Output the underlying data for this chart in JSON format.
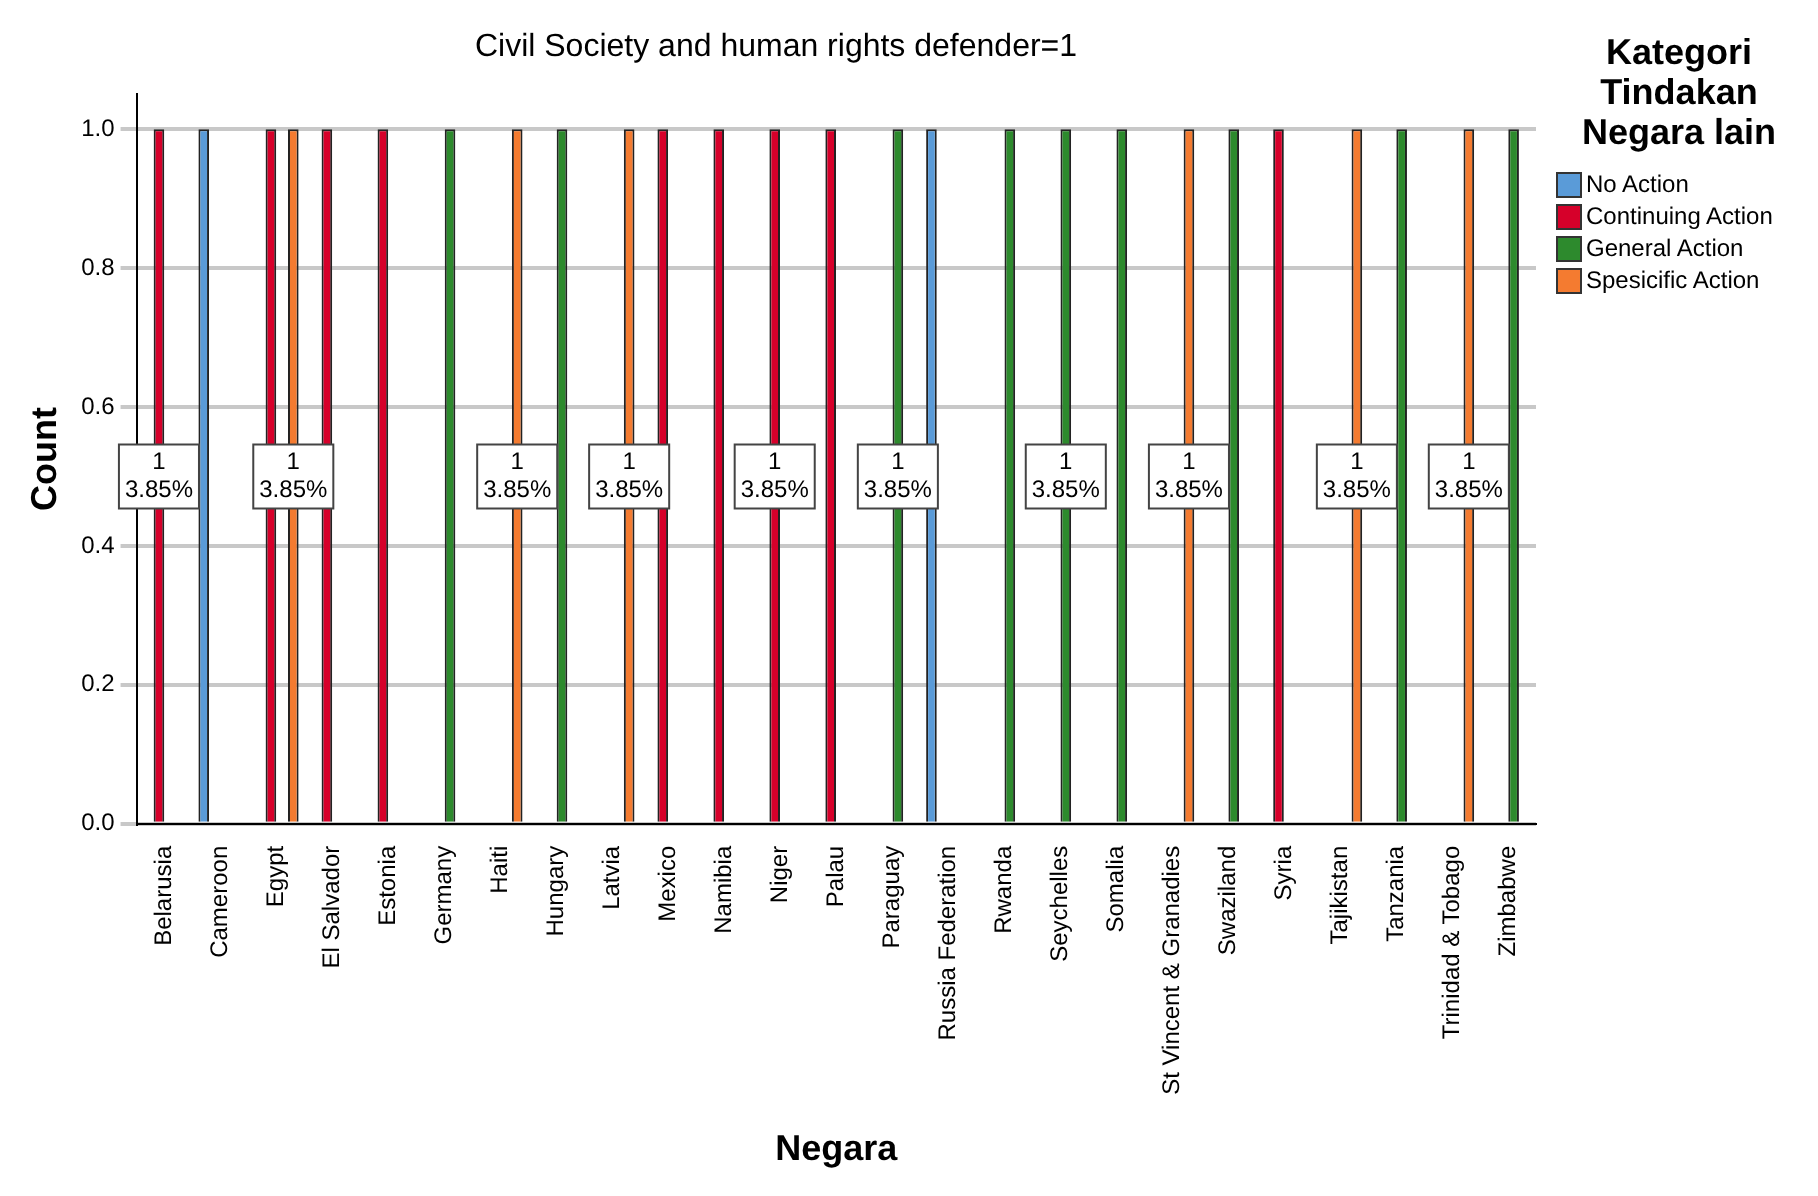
{
  "chart_data": {
    "type": "bar",
    "title": "Civil Society and human rights defender=1",
    "xlabel": "Negara",
    "ylabel": "Count",
    "legend_title": "Kategori Tindakan Negara lain",
    "legend": "right",
    "categories": [
      "Belarusia",
      "Cameroon",
      "Egypt",
      "El Salvador",
      "Estonia",
      "Germany",
      "Haiti",
      "Hungary",
      "Latvia",
      "Mexico",
      "Namibia",
      "Niger",
      "Palau",
      "Paraguay",
      "Russia Federation",
      "Rwanda",
      "Seychelles",
      "Somalia",
      "St Vincent & Granadies",
      "Swaziland",
      "Syria",
      "Tajikistan",
      "Tanzania",
      "Trinidad & Tobago",
      "Zimbabwe"
    ],
    "series": [
      {
        "name": "No Action",
        "color": "#5a9bd8",
        "values": [
          null,
          1,
          null,
          null,
          null,
          null,
          null,
          null,
          null,
          null,
          null,
          null,
          null,
          null,
          1,
          null,
          null,
          null,
          null,
          null,
          null,
          null,
          null,
          null,
          null
        ],
        "value_labels": [
          null,
          null,
          null,
          null,
          null,
          null,
          null,
          null,
          null,
          null,
          null,
          null,
          null,
          null,
          null,
          null,
          null,
          null,
          null,
          null,
          null,
          null,
          null,
          null,
          null
        ]
      },
      {
        "name": "Continuing Action",
        "color": "#d6002a",
        "values": [
          1,
          null,
          1,
          1,
          1,
          null,
          null,
          null,
          null,
          1,
          1,
          1,
          1,
          null,
          null,
          null,
          null,
          null,
          null,
          null,
          1,
          null,
          null,
          null,
          null
        ],
        "value_labels": [
          "1\n3.85%",
          null,
          null,
          null,
          null,
          null,
          null,
          null,
          null,
          null,
          null,
          "1\n3.85%",
          null,
          null,
          null,
          null,
          null,
          null,
          null,
          null,
          null,
          null,
          null,
          null,
          null
        ]
      },
      {
        "name": "General Action",
        "color": "#2d8a2d",
        "values": [
          null,
          null,
          null,
          null,
          null,
          1,
          null,
          1,
          null,
          null,
          null,
          null,
          null,
          1,
          null,
          1,
          1,
          1,
          null,
          1,
          null,
          null,
          1,
          null,
          1
        ],
        "value_labels": [
          null,
          null,
          null,
          null,
          null,
          null,
          null,
          null,
          null,
          null,
          null,
          null,
          null,
          "1\n3.85%",
          null,
          null,
          "1\n3.85%",
          null,
          null,
          null,
          null,
          null,
          null,
          null,
          null
        ]
      },
      {
        "name": "Spesicific Action",
        "color": "#f47b30",
        "values": [
          null,
          null,
          1,
          null,
          null,
          null,
          1,
          null,
          1,
          null,
          null,
          null,
          null,
          null,
          null,
          null,
          null,
          null,
          1,
          null,
          null,
          1,
          null,
          1,
          null
        ],
        "value_labels": [
          null,
          null,
          "1\n3.85%",
          null,
          null,
          null,
          "1\n3.85%",
          null,
          "1\n3.85%",
          null,
          null,
          null,
          null,
          null,
          null,
          null,
          null,
          null,
          "1\n3.85%",
          null,
          null,
          "1\n3.85%",
          null,
          "1\n3.85%",
          null
        ]
      }
    ],
    "ylim": [
      0,
      1.05
    ],
    "yticks": [
      {
        "value": 0,
        "label": "0.0"
      },
      {
        "value": 0.2,
        "label": "0.2"
      },
      {
        "value": 0.4,
        "label": "0.4"
      },
      {
        "value": 0.6,
        "label": "0.6"
      },
      {
        "value": 0.8,
        "label": "0.8"
      },
      {
        "value": 1,
        "label": "1.0"
      }
    ],
    "grid": "y"
  }
}
